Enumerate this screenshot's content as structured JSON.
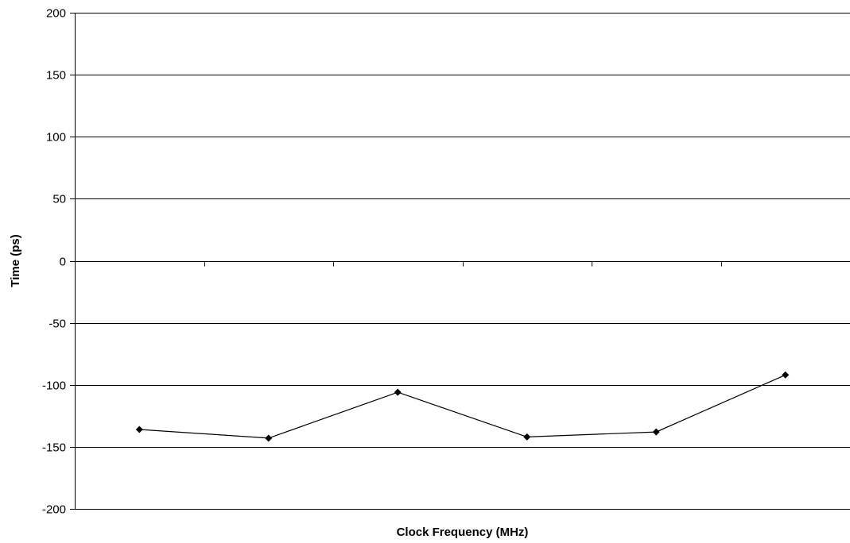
{
  "chart_data": {
    "type": "line",
    "title": "",
    "xlabel": "Clock Frequency (MHz)",
    "ylabel": "Time (ps)",
    "ylim": [
      -200,
      200
    ],
    "yticks": [
      200,
      150,
      100,
      50,
      0,
      -50,
      -100,
      -150,
      -200
    ],
    "ytick_labels": [
      "200",
      "150",
      "100",
      "50",
      "0",
      "-50",
      "-100",
      "-150",
      "-200"
    ],
    "grid": true,
    "legend": "none",
    "x": [
      1,
      2,
      3,
      4,
      5,
      6
    ],
    "series": [
      {
        "values": [
          -136,
          -143,
          -106,
          -142,
          -138,
          -92
        ],
        "marker": "diamond",
        "color": "#000000"
      }
    ]
  }
}
